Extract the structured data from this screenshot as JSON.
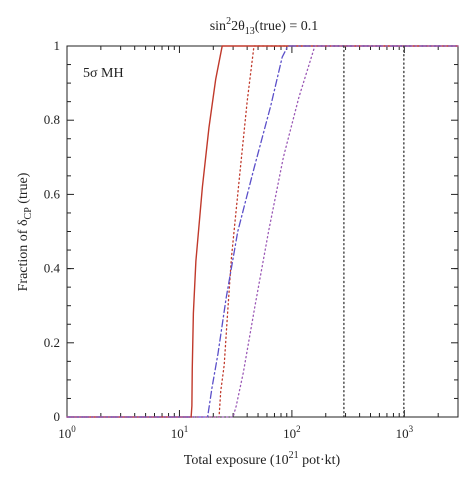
{
  "chart_data": {
    "type": "line",
    "title_text": "sin",
    "title_sup": "2",
    "title_rest": "2θ",
    "title_sub": "13",
    "title_end": "(true) = 0.1",
    "xlabel_main": "Total exposure (10",
    "xlabel_sup": "21",
    "xlabel_end": " pot·kt)",
    "ylabel_main": "Fraction of δ",
    "ylabel_sub": "CP",
    "ylabel_end": " (true)",
    "annotation": "5σ MH",
    "x_scale": "log",
    "xlim": [
      1,
      3000
    ],
    "ylim": [
      0,
      1
    ],
    "x_ticks": [
      {
        "value": 1,
        "base": "10",
        "exp": "0"
      },
      {
        "value": 10,
        "base": "10",
        "exp": "1"
      },
      {
        "value": 100,
        "base": "10",
        "exp": "2"
      },
      {
        "value": 1000,
        "base": "10",
        "exp": "3"
      }
    ],
    "y_ticks": [
      {
        "value": 0,
        "label": "0"
      },
      {
        "value": 0.2,
        "label": "0.2"
      },
      {
        "value": 0.4,
        "label": "0.4"
      },
      {
        "value": 0.6,
        "label": "0.6"
      },
      {
        "value": 0.8,
        "label": "0.8"
      },
      {
        "value": 1,
        "label": "1"
      }
    ],
    "grid": false,
    "series": [
      {
        "color": "#c0392b",
        "style": "solid",
        "points": [
          [
            1,
            0
          ],
          [
            12.7,
            0
          ],
          [
            12.9,
            0.03
          ],
          [
            13.0,
            0.13
          ],
          [
            13.3,
            0.28
          ],
          [
            14,
            0.42
          ],
          [
            16,
            0.62
          ],
          [
            18.3,
            0.78
          ],
          [
            21,
            0.91
          ],
          [
            24,
            1.0
          ],
          [
            3000,
            1.0
          ]
        ]
      },
      {
        "color": "#c0392b",
        "style": "dotted",
        "points": [
          [
            1,
            0
          ],
          [
            22.5,
            0
          ],
          [
            23.3,
            0.07
          ],
          [
            25,
            0.14
          ],
          [
            26.8,
            0.28
          ],
          [
            29,
            0.43
          ],
          [
            34,
            0.64
          ],
          [
            40,
            0.85
          ],
          [
            46,
            1.0
          ],
          [
            3000,
            1.0
          ]
        ]
      },
      {
        "color": "#5b4fc9",
        "style": "dashdot",
        "points": [
          [
            1,
            0
          ],
          [
            17.8,
            0
          ],
          [
            19.5,
            0.08
          ],
          [
            22,
            0.17
          ],
          [
            26,
            0.32
          ],
          [
            33,
            0.5
          ],
          [
            46,
            0.67
          ],
          [
            65,
            0.84
          ],
          [
            82,
            0.97
          ],
          [
            92,
            1.0
          ],
          [
            3000,
            1.0
          ]
        ]
      },
      {
        "color": "#9b59b6",
        "style": "dotted",
        "points": [
          [
            1,
            0
          ],
          [
            30,
            0
          ],
          [
            32,
            0.03
          ],
          [
            37,
            0.12
          ],
          [
            47,
            0.3
          ],
          [
            62,
            0.5
          ],
          [
            84,
            0.7
          ],
          [
            115,
            0.86
          ],
          [
            160,
            1.0
          ],
          [
            3000,
            1.0
          ]
        ]
      },
      {
        "color": "#333333",
        "style": "dotted",
        "points": [
          [
            290,
            0
          ],
          [
            290,
            1.0
          ]
        ]
      },
      {
        "color": "#333333",
        "style": "dotted",
        "points": [
          [
            990,
            0
          ],
          [
            990,
            1.0
          ]
        ]
      }
    ]
  }
}
